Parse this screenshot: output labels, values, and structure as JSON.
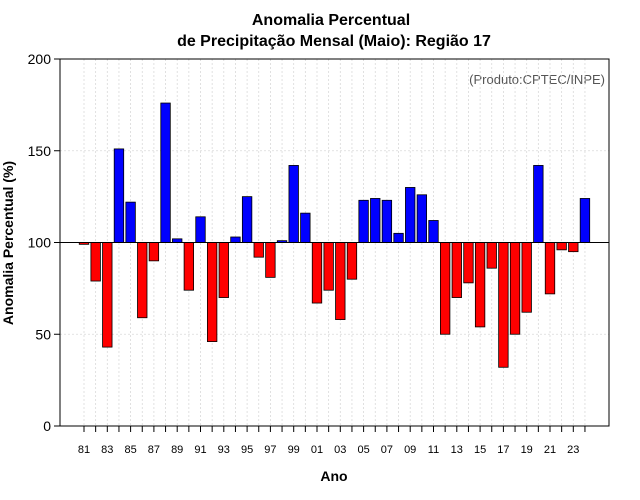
{
  "chart_data": {
    "type": "bar",
    "title_line1": "Anomalia Percentual",
    "title_line2": "de Precipitação Mensal (Maio): Região 17",
    "xlabel": "Ano",
    "ylabel": "Anomalia Percentual (%)",
    "credit": "(Produto:CPTEC/INPE)",
    "baseline": 100,
    "ylim": [
      0,
      200
    ],
    "yticks": [
      0,
      50,
      100,
      150,
      200
    ],
    "ytick_labels": [
      "0",
      "50",
      "100",
      "150",
      "200"
    ],
    "grid": true,
    "colors": {
      "above": "#0000ff",
      "below": "#ff0000"
    },
    "categories": [
      "1981",
      "1982",
      "1983",
      "1984",
      "1985",
      "1986",
      "1987",
      "1988",
      "1989",
      "1990",
      "1991",
      "1992",
      "1993",
      "1994",
      "1995",
      "1996",
      "1997",
      "1998",
      "1999",
      "2000",
      "2001",
      "2002",
      "2003",
      "2004",
      "2005",
      "2006",
      "2007",
      "2008",
      "2009",
      "2010",
      "2011",
      "2012",
      "2013",
      "2014",
      "2015",
      "2016",
      "2017",
      "2018",
      "2019",
      "2020",
      "2021",
      "2022",
      "2023",
      "2024"
    ],
    "xtick_labels": [
      "81",
      "83",
      "85",
      "87",
      "89",
      "91",
      "93",
      "95",
      "97",
      "99",
      "01",
      "03",
      "05",
      "07",
      "09",
      "11",
      "13",
      "15",
      "17",
      "19",
      "21",
      "23"
    ],
    "values": [
      99,
      79,
      43,
      151,
      122,
      59,
      90,
      176,
      102,
      74,
      114,
      46,
      70,
      103,
      125,
      92,
      81,
      101,
      142,
      116,
      67,
      74,
      58,
      80,
      123,
      124,
      123,
      105,
      130,
      126,
      112,
      50,
      70,
      78,
      54,
      86,
      32,
      50,
      62,
      142,
      72,
      96,
      95,
      124
    ]
  }
}
